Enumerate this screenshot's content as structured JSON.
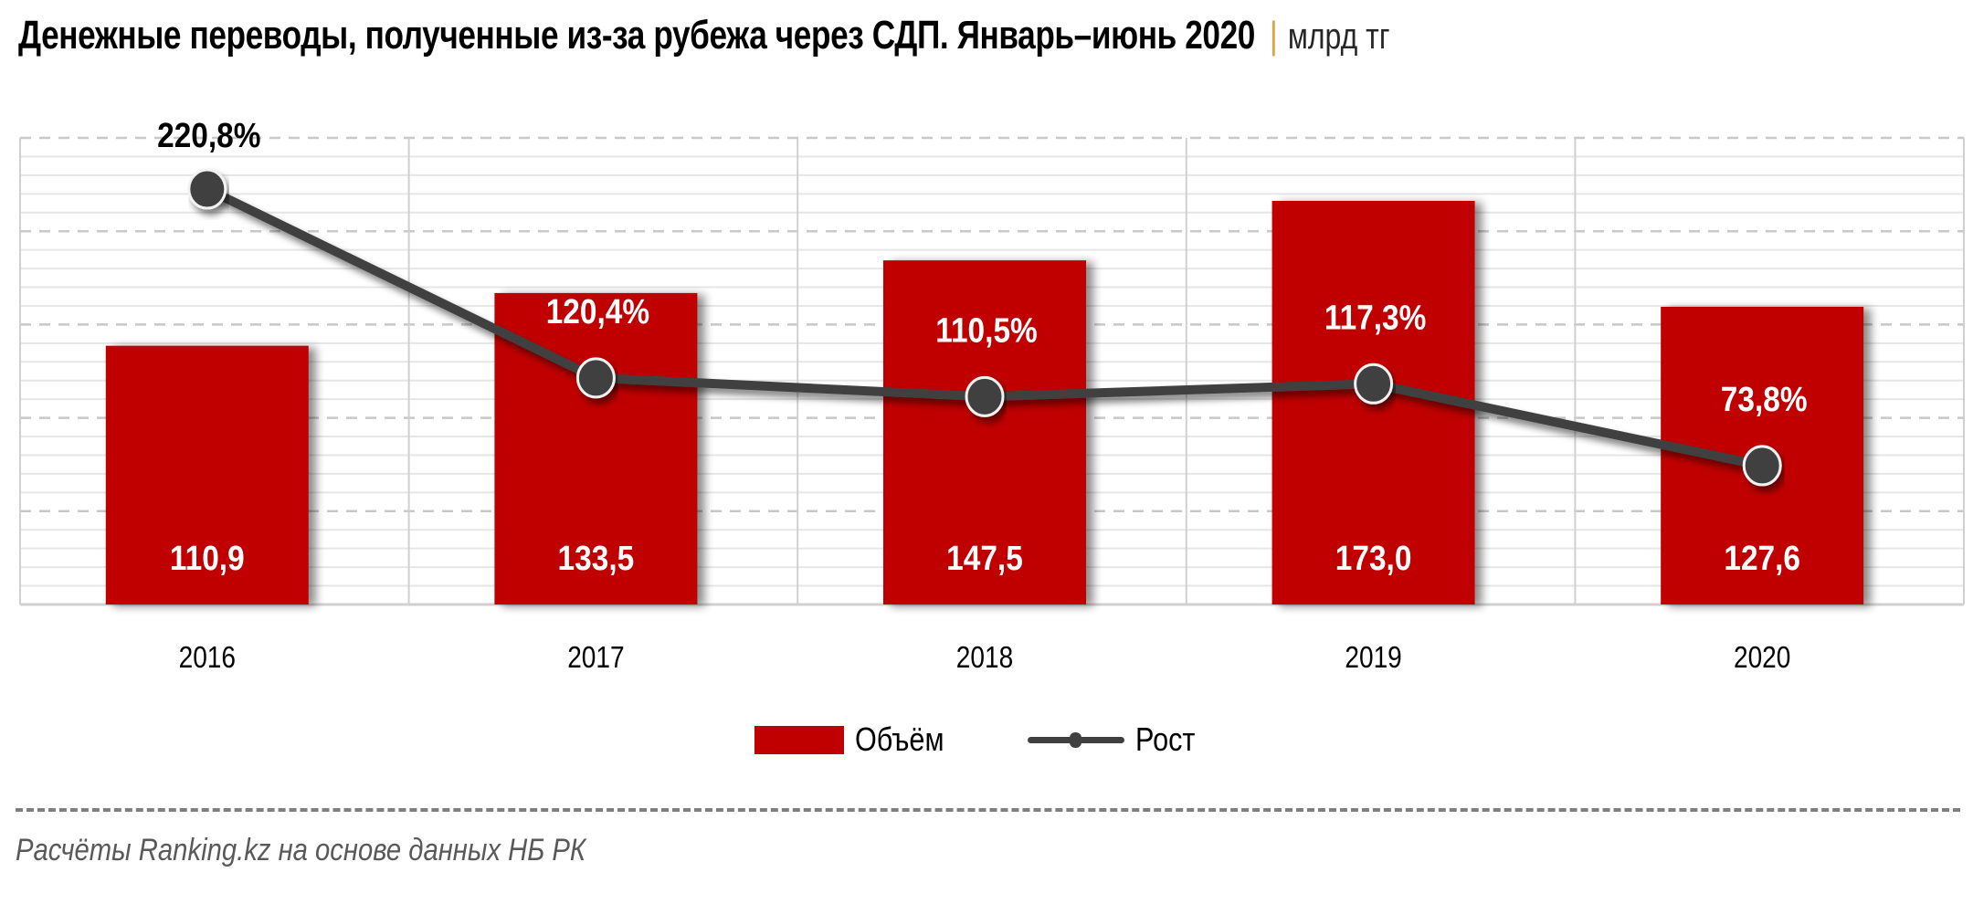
{
  "header": {
    "title": "Денежные переводы, полученные из-за рубежа через СДП. Январь–июнь 2020",
    "separator": "|",
    "unit": "млрд тг"
  },
  "legend": {
    "items": [
      {
        "label": "Объём",
        "type": "bar",
        "color": "#C00000"
      },
      {
        "label": "Рост",
        "type": "line",
        "color": "#404040"
      }
    ]
  },
  "footer": {
    "source": "Расчёты Ranking.kz на основе данных НБ РК"
  },
  "colors": {
    "bar": "#C00000",
    "line": "#404040",
    "grid_major": "#C8C8C8",
    "grid_minor": "#E6E6E6",
    "axis_text": "#000000",
    "bar_label": "#FFFFFF"
  },
  "chart_data": {
    "type": "bar",
    "title": "Денежные переводы, полученные из-за рубежа через СДП. Январь–июнь 2020",
    "subtitle": "млрд тг",
    "categories": [
      "2016",
      "2017",
      "2018",
      "2019",
      "2020"
    ],
    "series": [
      {
        "name": "Объём",
        "type": "bar",
        "axis": "primary",
        "values": [
          110.9,
          133.5,
          147.5,
          173.0,
          127.6
        ],
        "labels": [
          "110,9",
          "133,5",
          "147,5",
          "173,0",
          "127,6"
        ],
        "color": "#C00000"
      },
      {
        "name": "Рост",
        "type": "line",
        "axis": "secondary",
        "values": [
          220.8,
          120.4,
          110.5,
          117.3,
          73.8
        ],
        "labels": [
          "220,8%",
          "120,4%",
          "110,5%",
          "117,3%",
          "73,8%"
        ],
        "color": "#404040"
      }
    ],
    "xlabel": "",
    "ylabel": "",
    "ylim": [
      0,
      200
    ],
    "y2lim": [
      0,
      248
    ],
    "y_axis_visible": false,
    "grid": true,
    "legend_position": "bottom"
  }
}
